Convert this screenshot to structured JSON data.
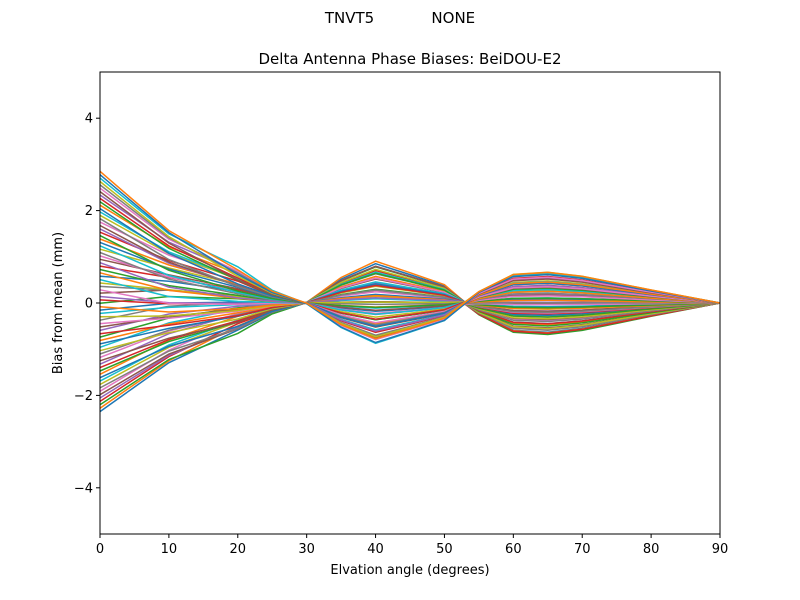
{
  "figure": {
    "suptitle_left": "TNVT5",
    "suptitle_right": "NONE"
  },
  "chart_data": {
    "type": "line",
    "title": "Delta Antenna Phase Biases: BeiDOU-E2",
    "xlabel": "Elvation angle (degrees)",
    "ylabel": "Bias from mean (mm)",
    "xlim": [
      0,
      90
    ],
    "ylim": [
      -5,
      5
    ],
    "xticks": [
      0,
      10,
      20,
      30,
      40,
      50,
      60,
      70,
      80,
      90
    ],
    "yticks": [
      -4,
      -2,
      0,
      2,
      4
    ],
    "x": [
      0,
      5,
      10,
      15,
      20,
      25,
      30,
      35,
      40,
      45,
      50,
      55,
      60,
      65,
      70,
      75,
      80,
      85,
      90
    ],
    "series_count": 72,
    "series_shape": {
      "start_values_mm": {
        "min": -2.35,
        "max": 2.85
      },
      "value_at_40deg_mm": {
        "min": -0.9,
        "max": 0.85
      },
      "value_at_62deg_mm": {
        "min": -0.8,
        "max": 0.7
      },
      "value_at_90deg_mm": 0
    },
    "colors": [
      "#1f77b4",
      "#ff7f0e",
      "#2ca02c",
      "#d62728",
      "#9467bd",
      "#8c564b",
      "#e377c2",
      "#7f7f7f",
      "#bcbd22",
      "#17becf"
    ]
  }
}
